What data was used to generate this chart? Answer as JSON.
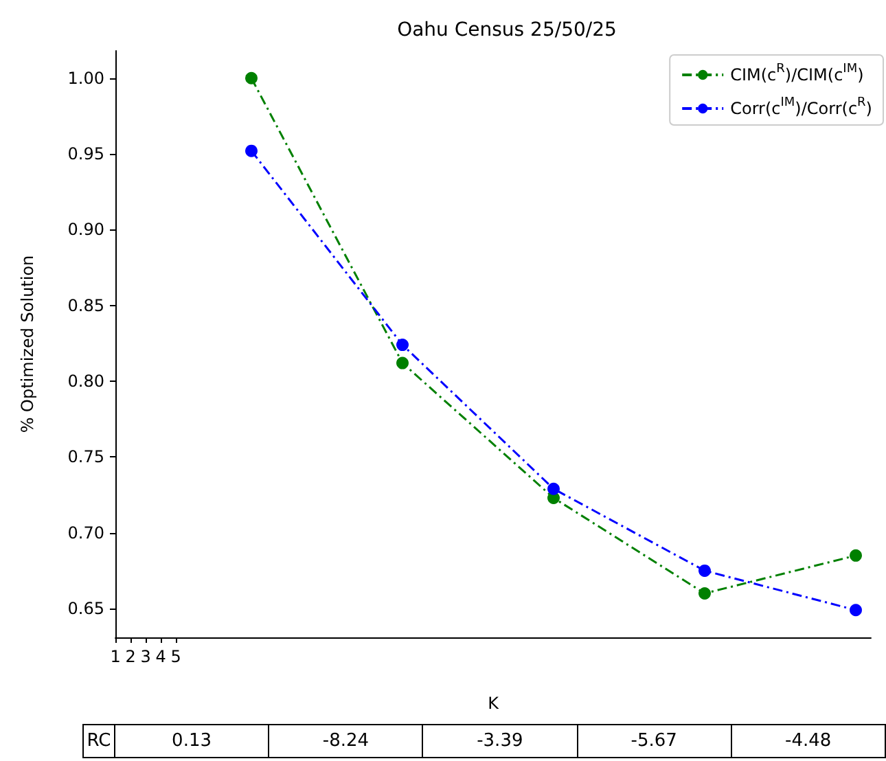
{
  "chart_data": {
    "type": "line",
    "title": "Oahu Census 25/50/25",
    "xlabel": "K",
    "ylabel": "% Optimized Solution",
    "x": [
      10,
      20,
      30,
      40,
      50
    ],
    "series": [
      {
        "name": "CIM(c$^{R}$)/CIM(c$^{IM}$)",
        "color": "#008000",
        "values": [
          1.0,
          0.812,
          0.723,
          0.66,
          0.685
        ]
      },
      {
        "name": "Corr(c$^{IM}$)/Corr(c$^{R}$)",
        "color": "#0000ff",
        "values": [
          0.952,
          0.824,
          0.729,
          0.675,
          0.649
        ]
      }
    ],
    "xlim": [
      1,
      51
    ],
    "xticks": [
      1,
      2,
      3,
      4,
      5
    ],
    "ylim": [
      0.631,
      1.018
    ],
    "yticks": [
      0.65,
      {
        "value": 0.7,
        "label": "0.70"
      },
      0.75,
      {
        "value": 0.8,
        "label": "0.80"
      },
      0.85,
      {
        "value": 0.9,
        "label": "0.90"
      },
      0.95,
      {
        "value": 1.0,
        "label": "1.00"
      }
    ],
    "legend": "top right",
    "marker": "circle",
    "line_style": "dashdot",
    "grid": false,
    "annotations": [
      "RC",
      "0.13",
      "-8.24",
      "-3.39",
      "-5.67",
      "-4.48"
    ]
  }
}
